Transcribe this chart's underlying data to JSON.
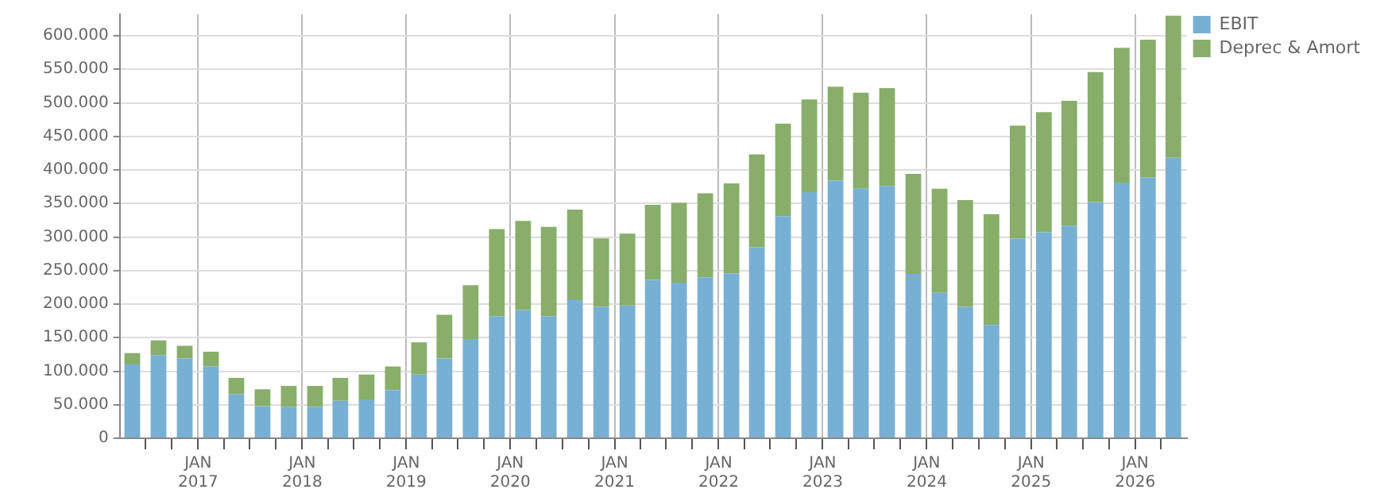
{
  "chart_data": {
    "type": "bar",
    "stacked": true,
    "grid": true,
    "legend": "top right",
    "x": [
      "2016-05-15",
      "2016-08-15",
      "2016-11-15",
      "2017-02-15",
      "2017-05-15",
      "2017-08-15",
      "2017-11-15",
      "2018-02-15",
      "2018-05-15",
      "2018-08-15",
      "2018-11-15",
      "2019-02-15",
      "2019-05-15",
      "2019-08-15",
      "2019-11-15",
      "2020-02-15",
      "2020-05-15",
      "2020-08-15",
      "2020-11-15",
      "2021-02-15",
      "2021-05-15",
      "2021-08-15",
      "2021-11-15",
      "2022-02-15",
      "2022-05-15",
      "2022-08-15",
      "2022-11-15",
      "2023-02-15",
      "2023-05-15",
      "2023-08-15",
      "2023-11-15",
      "2024-02-15",
      "2024-05-15",
      "2024-08-15",
      "2024-11-15",
      "2025-02-15",
      "2025-05-15",
      "2025-08-15",
      "2025-11-15",
      "2026-02-15",
      "2026-05-15"
    ],
    "series": [
      {
        "name": "EBIT",
        "color": "#78b0d3",
        "values": [
          110000,
          124000,
          119000,
          107000,
          66000,
          48000,
          47000,
          47000,
          56000,
          58000,
          72000,
          95000,
          119000,
          148000,
          182000,
          191000,
          182000,
          206000,
          196000,
          198000,
          236000,
          232000,
          240000,
          246000,
          285000,
          331000,
          367000,
          384000,
          372000,
          376000,
          245000,
          217000,
          196000,
          169000,
          298000,
          307000,
          317000,
          352000,
          381000,
          389000,
          418000
        ]
      },
      {
        "name": "Deprec & Amort",
        "color": "#88ae6a",
        "values": [
          17000,
          22000,
          19000,
          22000,
          24000,
          25000,
          31000,
          31000,
          34000,
          37000,
          35000,
          48000,
          65000,
          80000,
          130000,
          133000,
          133000,
          135000,
          102000,
          107000,
          112000,
          119000,
          125000,
          134000,
          138000,
          138000,
          138000,
          140000,
          143000,
          146000,
          149000,
          155000,
          159000,
          165000,
          168000,
          179000,
          186000,
          194000,
          201000,
          205000,
          212000
        ]
      }
    ],
    "xlim": [
      "2016-04-01",
      "2026-07-01"
    ],
    "xticks": [
      {
        "value": "2016-07-01",
        "label": null
      },
      {
        "value": "2016-10-01",
        "label": null
      },
      {
        "value": "2017-01-01",
        "label": "JAN 2017"
      },
      {
        "value": "2017-04-01",
        "label": null
      },
      {
        "value": "2017-07-01",
        "label": null
      },
      {
        "value": "2017-10-01",
        "label": null
      },
      {
        "value": "2018-01-01",
        "label": "JAN 2018"
      },
      {
        "value": "2018-04-01",
        "label": null
      },
      {
        "value": "2018-07-01",
        "label": null
      },
      {
        "value": "2018-10-01",
        "label": null
      },
      {
        "value": "2019-01-01",
        "label": "JAN 2019"
      },
      {
        "value": "2019-04-01",
        "label": null
      },
      {
        "value": "2019-07-01",
        "label": null
      },
      {
        "value": "2019-10-01",
        "label": null
      },
      {
        "value": "2020-01-01",
        "label": "JAN 2020"
      },
      {
        "value": "2020-04-01",
        "label": null
      },
      {
        "value": "2020-07-01",
        "label": null
      },
      {
        "value": "2020-10-01",
        "label": null
      },
      {
        "value": "2021-01-01",
        "label": "JAN 2021"
      },
      {
        "value": "2021-04-01",
        "label": null
      },
      {
        "value": "2021-07-01",
        "label": null
      },
      {
        "value": "2021-10-01",
        "label": null
      },
      {
        "value": "2022-01-01",
        "label": "JAN 2022"
      },
      {
        "value": "2022-04-01",
        "label": null
      },
      {
        "value": "2022-07-01",
        "label": null
      },
      {
        "value": "2022-10-01",
        "label": null
      },
      {
        "value": "2023-01-01",
        "label": "JAN 2023"
      },
      {
        "value": "2023-04-01",
        "label": null
      },
      {
        "value": "2023-07-01",
        "label": null
      },
      {
        "value": "2023-10-01",
        "label": null
      },
      {
        "value": "2024-01-01",
        "label": "JAN 2024"
      },
      {
        "value": "2024-04-01",
        "label": null
      },
      {
        "value": "2024-07-01",
        "label": null
      },
      {
        "value": "2024-10-01",
        "label": null
      },
      {
        "value": "2025-01-01",
        "label": "JAN 2025"
      },
      {
        "value": "2025-04-01",
        "label": null
      },
      {
        "value": "2025-07-01",
        "label": null
      },
      {
        "value": "2025-10-01",
        "label": null
      },
      {
        "value": "2026-01-01",
        "label": "JAN 2026"
      },
      {
        "value": "2026-04-01",
        "label": null
      }
    ],
    "ylim": [
      0,
      632000
    ],
    "yticks": [
      {
        "value": 0,
        "label": "0"
      },
      {
        "value": 50000,
        "label": "50.000"
      },
      {
        "value": 100000,
        "label": "100.000"
      },
      {
        "value": 150000,
        "label": "150.000"
      },
      {
        "value": 200000,
        "label": "200.000"
      },
      {
        "value": 250000,
        "label": "250.000"
      },
      {
        "value": 300000,
        "label": "300.000"
      },
      {
        "value": 350000,
        "label": "350.000"
      },
      {
        "value": 400000,
        "label": "400.000"
      },
      {
        "value": 450000,
        "label": "450.000"
      },
      {
        "value": 500000,
        "label": "500.000"
      },
      {
        "value": 550000,
        "label": "550.000"
      },
      {
        "value": 600000,
        "label": "600.000"
      }
    ]
  }
}
